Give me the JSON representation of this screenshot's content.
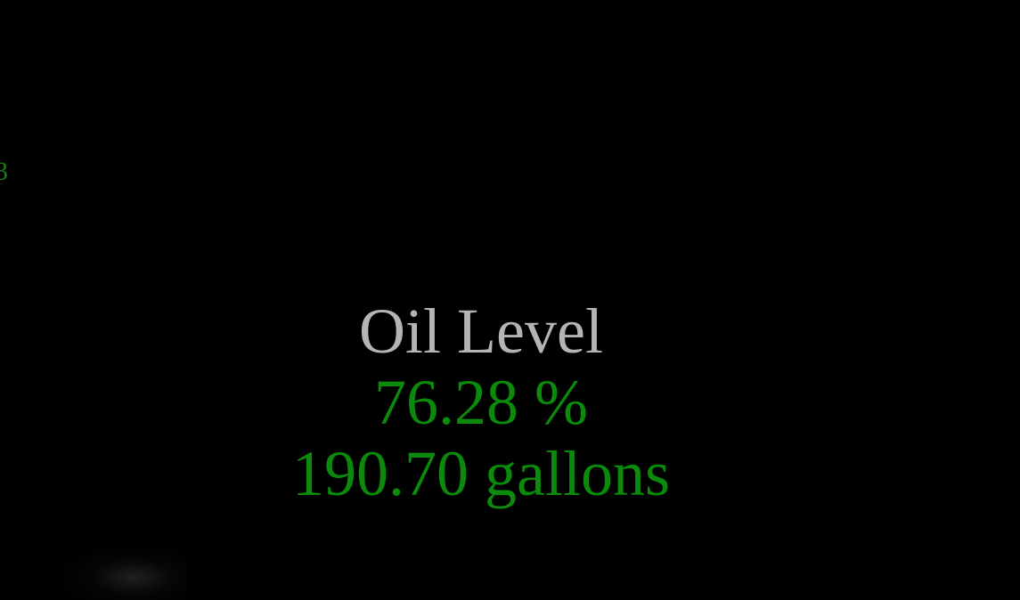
{
  "edge_fragment": "3",
  "oil": {
    "title": "Oil Level",
    "percent_text": "76.28 %",
    "volume_text": "190.70 gallons",
    "percent": 76.28,
    "gallons": 190.7
  },
  "colors": {
    "background": "#000000",
    "title": "#b4b4b4",
    "value": "#0c8a0c"
  }
}
